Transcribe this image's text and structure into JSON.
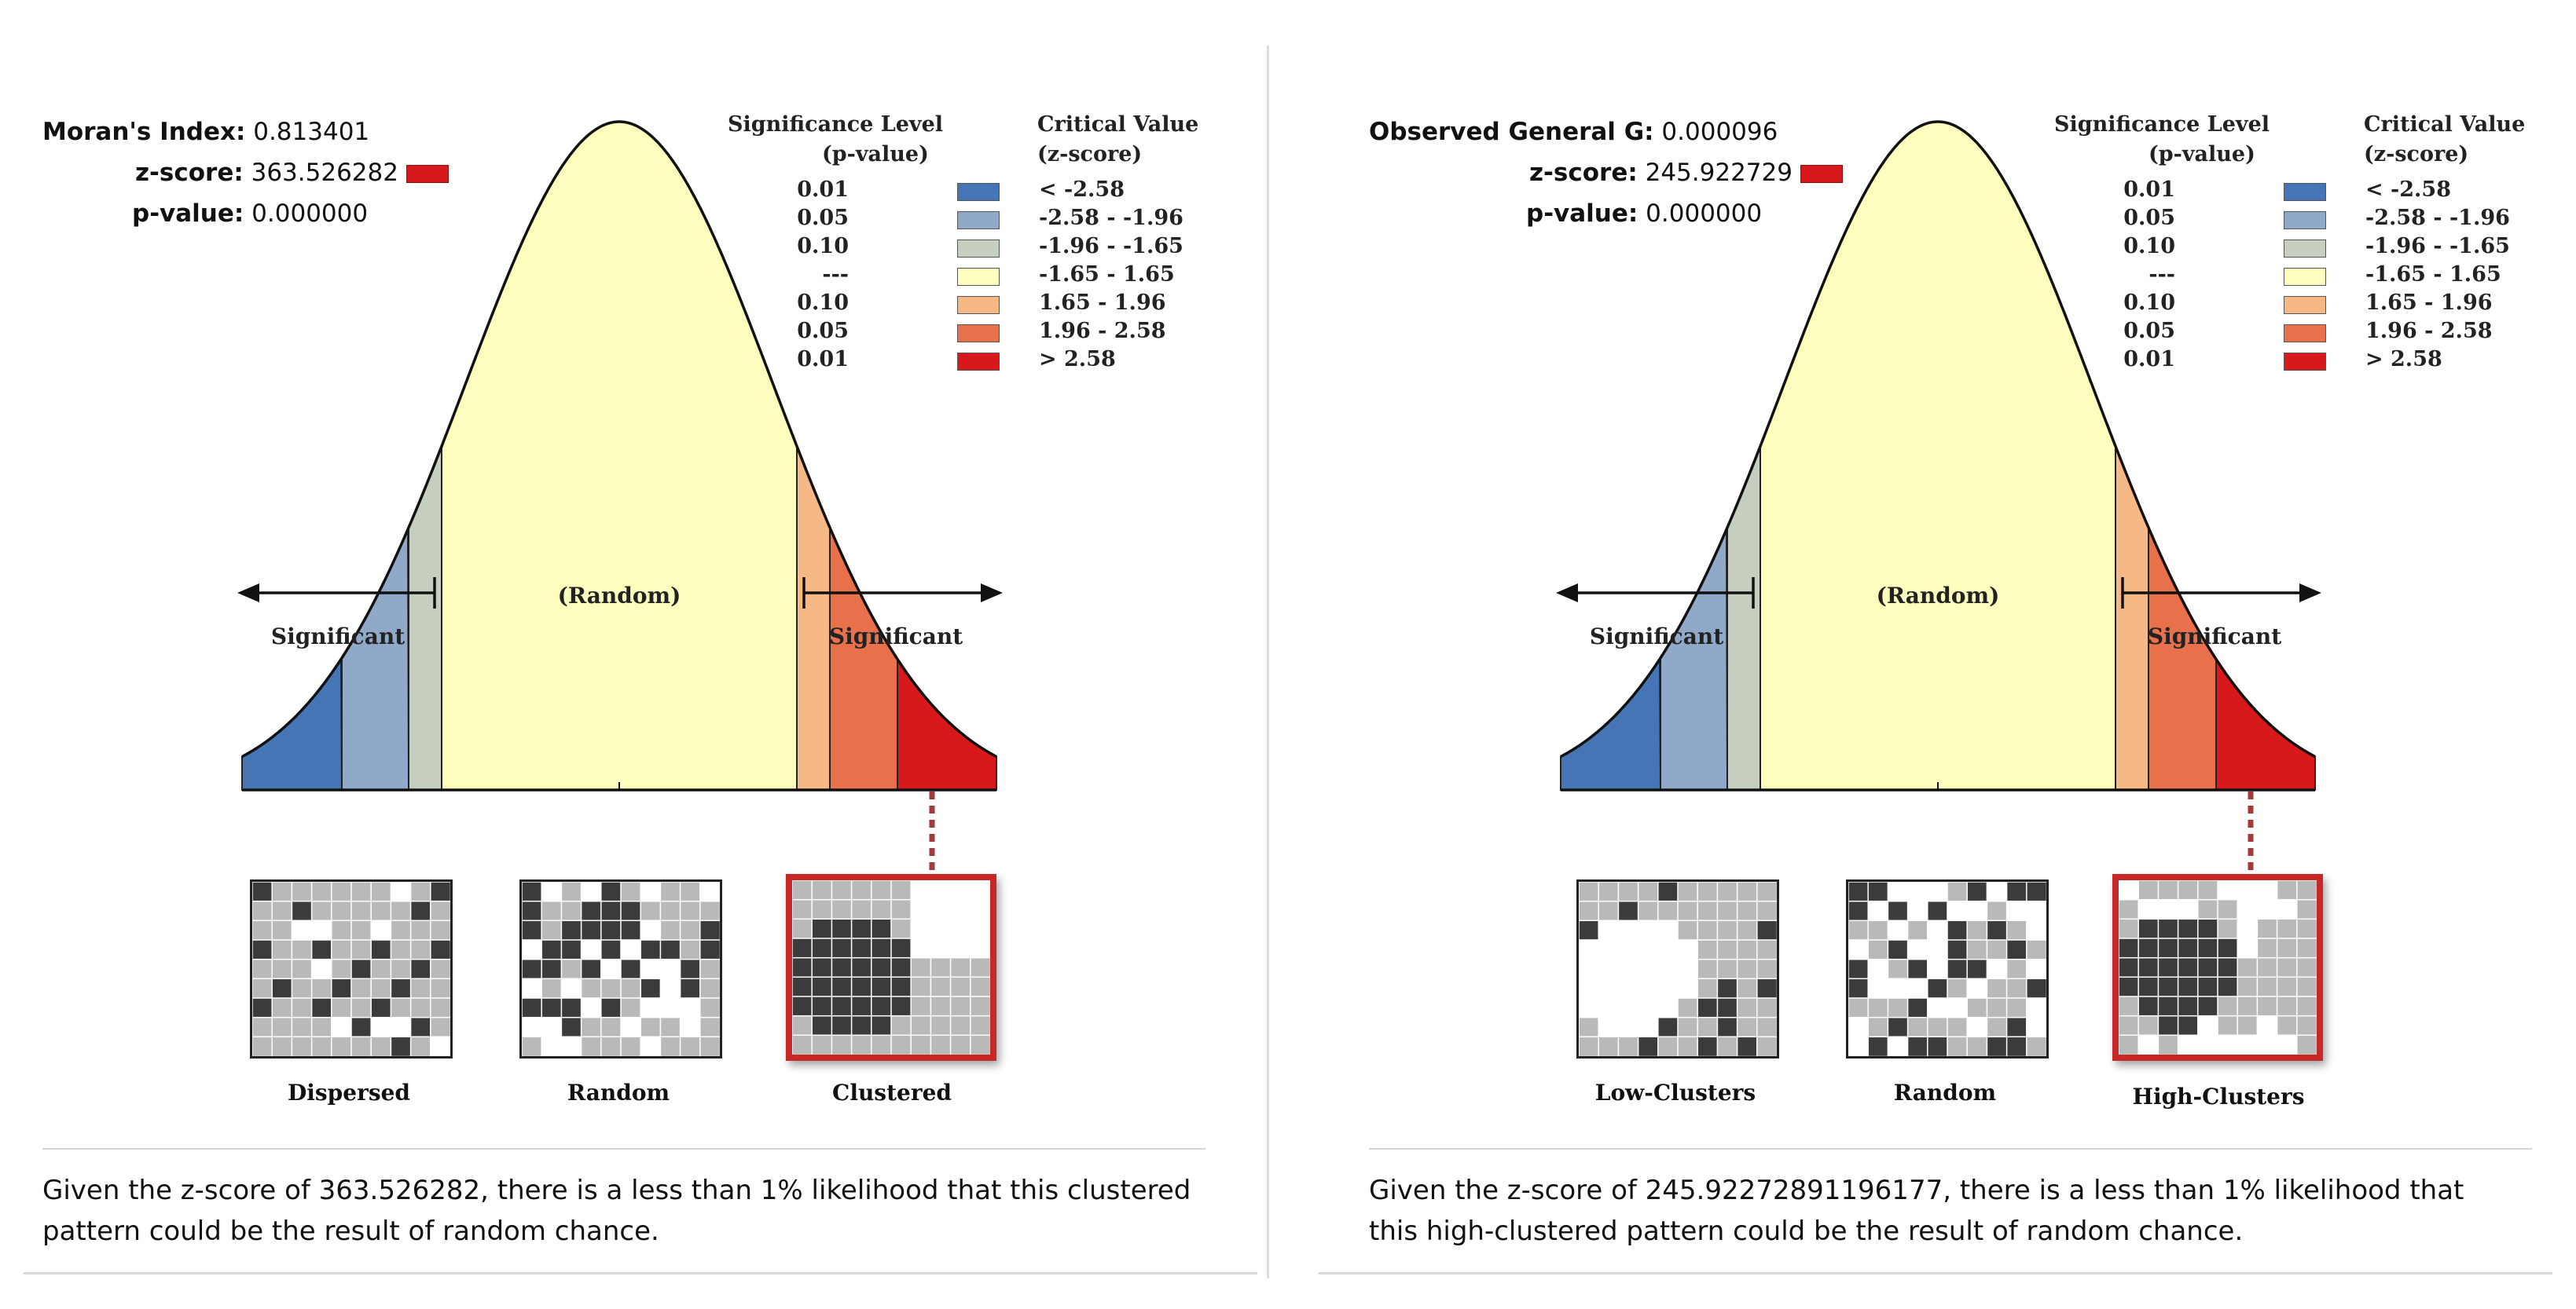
{
  "colors": {
    "bins": [
      "#4575b4",
      "#91a9c8",
      "#c5cebf",
      "#fdfdbd",
      "#f6b985",
      "#e8704a",
      "#d7191c"
    ],
    "highlight": "#c62828"
  },
  "panels": [
    {
      "stats": [
        {
          "label": "Moran's Index:",
          "value": "0.813401",
          "swatch": false
        },
        {
          "label": "z-score:",
          "value": "363.526282",
          "swatch": true
        },
        {
          "label": "p-value:",
          "value": "0.000000",
          "swatch": false
        }
      ],
      "legend": {
        "header_sig": [
          "Significance Level",
          "(p-value)"
        ],
        "header_crit": [
          "Critical Value",
          "(z-score)"
        ],
        "rows": [
          {
            "p": "0.01",
            "z": "< -2.58"
          },
          {
            "p": "0.05",
            "z": "-2.58 - -1.96"
          },
          {
            "p": "0.10",
            "z": "-1.96 - -1.65"
          },
          {
            "p": "---",
            "z": "-1.65 - 1.65"
          },
          {
            "p": "0.10",
            "z": "1.65 - 1.96"
          },
          {
            "p": "0.05",
            "z": "1.96 - 2.58"
          },
          {
            "p": "0.01",
            "z": "> 2.58"
          }
        ]
      },
      "curve": {
        "random": "(Random)",
        "significant_left": "Significant",
        "significant_right": "Significant",
        "pointer_bin": 6
      },
      "patterns": [
        {
          "label": "Dispersed",
          "kind": "dispersed",
          "highlight": false
        },
        {
          "label": "Random",
          "kind": "random",
          "highlight": false
        },
        {
          "label": "Clustered",
          "kind": "clustered",
          "highlight": true
        }
      ],
      "caption": "Given the z-score of 363.526282, there is a less than 1% likelihood that this clustered pattern could be the result of random chance."
    },
    {
      "stats": [
        {
          "label": "Observed General G:",
          "value": "0.000096",
          "swatch": false
        },
        {
          "label": "z-score:",
          "value": "245.922729",
          "swatch": true
        },
        {
          "label": "p-value:",
          "value": "0.000000",
          "swatch": false
        }
      ],
      "legend": {
        "header_sig": [
          "Significance Level",
          "(p-value)"
        ],
        "header_crit": [
          "Critical Value",
          "(z-score)"
        ],
        "rows": [
          {
            "p": "0.01",
            "z": "< -2.58"
          },
          {
            "p": "0.05",
            "z": "-2.58 - -1.96"
          },
          {
            "p": "0.10",
            "z": "-1.96 - -1.65"
          },
          {
            "p": "---",
            "z": "-1.65 - 1.65"
          },
          {
            "p": "0.10",
            "z": "1.65 - 1.96"
          },
          {
            "p": "0.05",
            "z": "1.96 - 2.58"
          },
          {
            "p": "0.01",
            "z": "> 2.58"
          }
        ]
      },
      "curve": {
        "random": "(Random)",
        "significant_left": "Significant",
        "significant_right": "Significant",
        "pointer_bin": 6
      },
      "patterns": [
        {
          "label": "Low-Clusters",
          "kind": "lowclusters",
          "highlight": false
        },
        {
          "label": "Random",
          "kind": "random2",
          "highlight": false
        },
        {
          "label": "High-Clusters",
          "kind": "highclusters",
          "highlight": true
        }
      ],
      "caption": "Given the z-score of 245.92272891196177, there is a less than 1% likelihood that this high-clustered pattern could be the result of random chance."
    }
  ]
}
